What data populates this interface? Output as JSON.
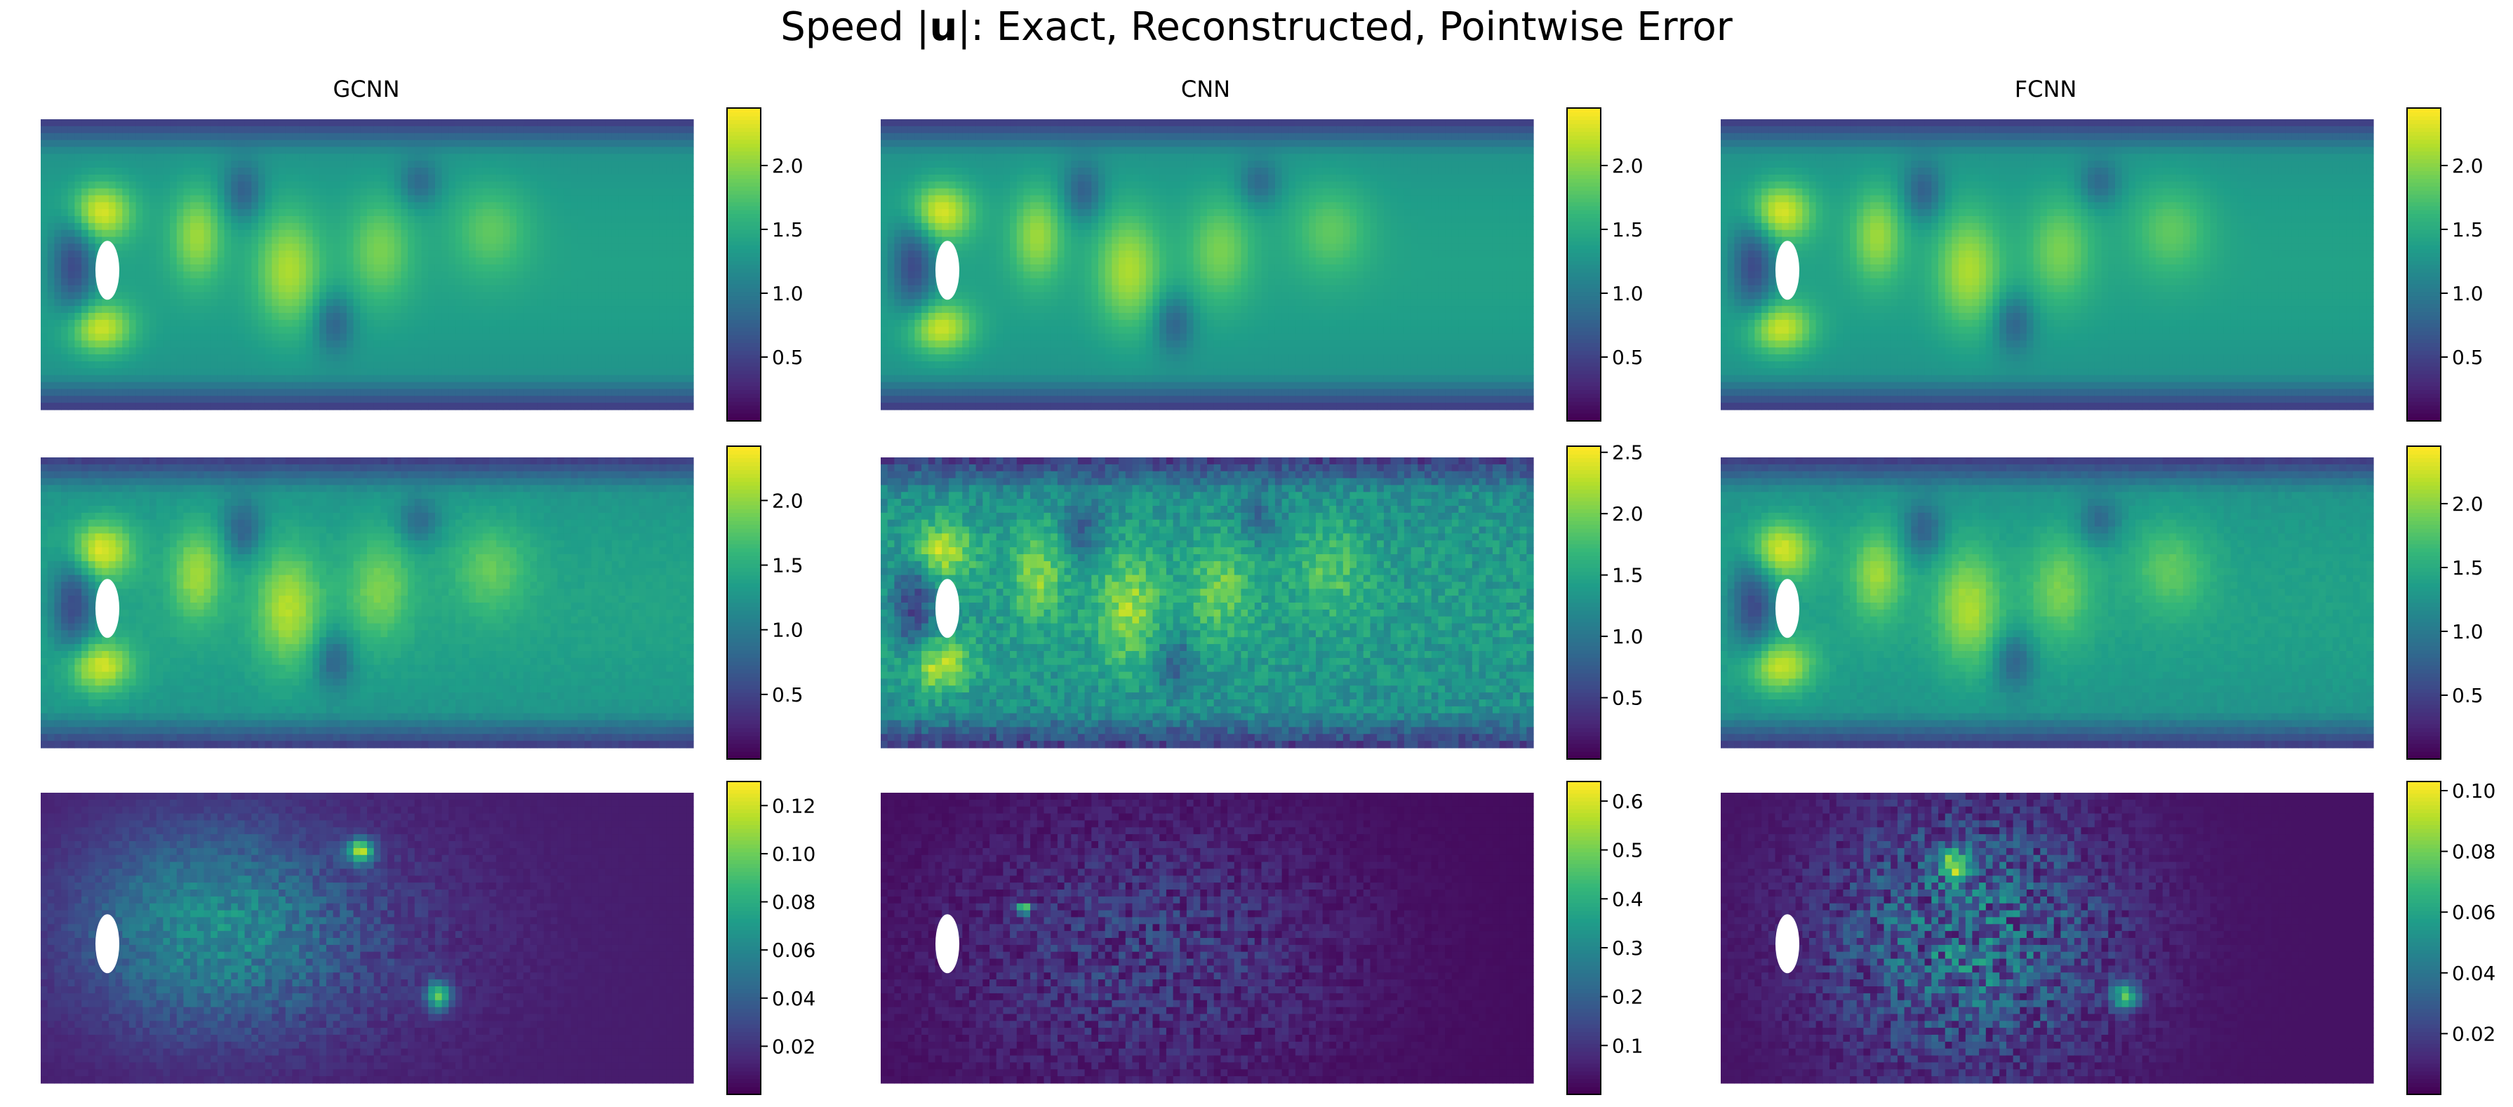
{
  "figure": {
    "title_prefix": "Speed |",
    "title_bold": "u",
    "title_suffix": "|: Exact, Reconstructed, Pointwise Error"
  },
  "columns": [
    "GCNN",
    "CNN",
    "FCNN"
  ],
  "rows": [
    "Exact",
    "Reconstructed",
    "Pointwise Error"
  ],
  "colors": {
    "viridis": [
      "#440154",
      "#482878",
      "#3e4989",
      "#31688e",
      "#26828e",
      "#1f9e89",
      "#35b779",
      "#6ece58",
      "#b5de2b",
      "#fde725"
    ],
    "obstacle": "#ffffff"
  },
  "chart_data": [
    {
      "type": "heatmap",
      "row": "Exact",
      "column": "GCNN",
      "colorbar_ticks": [
        "0.5",
        "1.0",
        "1.5",
        "2.0"
      ],
      "colorbar_range": [
        0.0,
        2.45
      ]
    },
    {
      "type": "heatmap",
      "row": "Exact",
      "column": "CNN",
      "colorbar_ticks": [
        "0.5",
        "1.0",
        "1.5",
        "2.0"
      ],
      "colorbar_range": [
        0.0,
        2.45
      ]
    },
    {
      "type": "heatmap",
      "row": "Exact",
      "column": "FCNN",
      "colorbar_ticks": [
        "0.5",
        "1.0",
        "1.5",
        "2.0"
      ],
      "colorbar_range": [
        0.0,
        2.45
      ]
    },
    {
      "type": "heatmap",
      "row": "Reconstructed",
      "column": "GCNN",
      "colorbar_ticks": [
        "0.5",
        "1.0",
        "1.5",
        "2.0"
      ],
      "colorbar_range": [
        0.0,
        2.42
      ]
    },
    {
      "type": "heatmap",
      "row": "Reconstructed",
      "column": "CNN",
      "colorbar_ticks": [
        "0.5",
        "1.0",
        "1.5",
        "2.0",
        "2.5"
      ],
      "colorbar_range": [
        0.0,
        2.55
      ]
    },
    {
      "type": "heatmap",
      "row": "Reconstructed",
      "column": "FCNN",
      "colorbar_ticks": [
        "0.5",
        "1.0",
        "1.5",
        "2.0"
      ],
      "colorbar_range": [
        0.0,
        2.45
      ]
    },
    {
      "type": "heatmap",
      "row": "Pointwise Error",
      "column": "GCNN",
      "colorbar_ticks": [
        "0.02",
        "0.04",
        "0.06",
        "0.08",
        "0.10",
        "0.12"
      ],
      "colorbar_range": [
        0.0,
        0.13
      ]
    },
    {
      "type": "heatmap",
      "row": "Pointwise Error",
      "column": "CNN",
      "colorbar_ticks": [
        "0.1",
        "0.2",
        "0.3",
        "0.4",
        "0.5",
        "0.6"
      ],
      "colorbar_range": [
        0.0,
        0.64
      ]
    },
    {
      "type": "heatmap",
      "row": "Pointwise Error",
      "column": "FCNN",
      "colorbar_ticks": [
        "0.02",
        "0.04",
        "0.06",
        "0.08",
        "0.10"
      ],
      "colorbar_range": [
        0.0,
        0.103
      ]
    }
  ]
}
